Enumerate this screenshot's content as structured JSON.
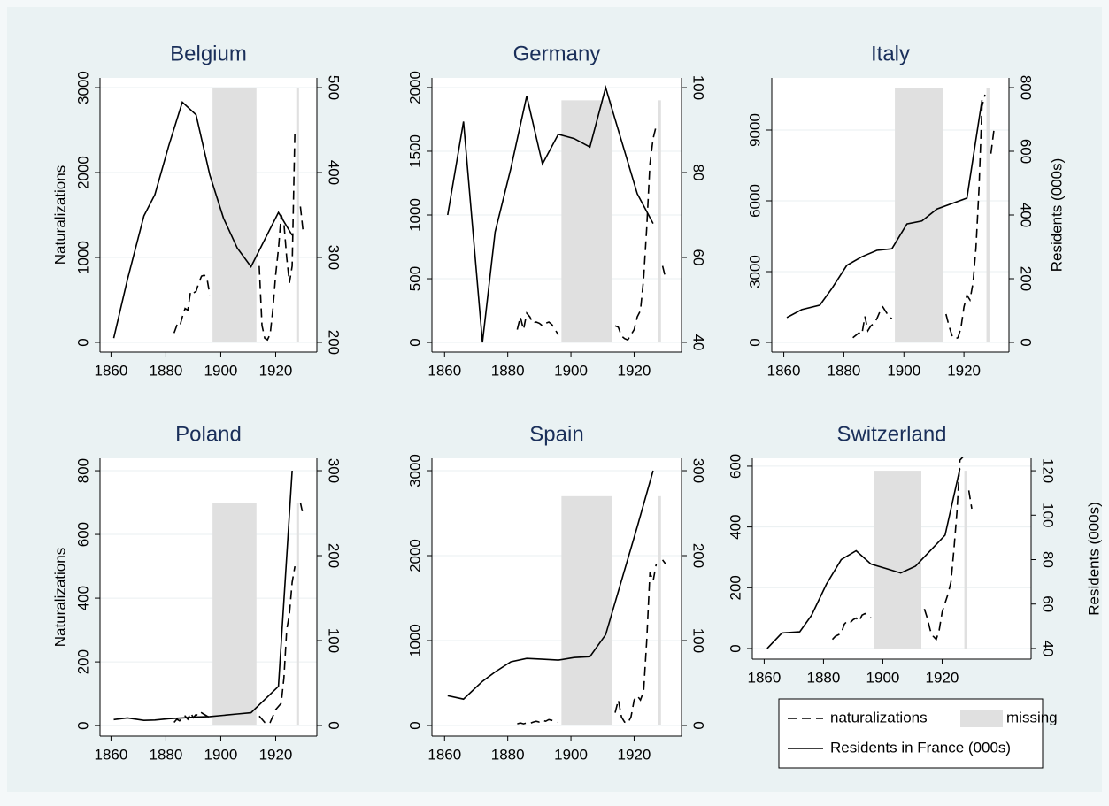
{
  "chart_data": [
    {
      "type": "line",
      "title": "Belgium",
      "ylabel": "Naturalizations",
      "grid": true,
      "xlim": [
        1856,
        1935
      ],
      "xticks": [
        1860,
        1880,
        1900,
        1920
      ],
      "ylim": [
        -115,
        3115
      ],
      "yticks": [
        0,
        1000,
        2000,
        3000
      ],
      "y2lim": [
        188.5,
        511.5
      ],
      "y2ticks": [
        200,
        300,
        400,
        500
      ],
      "missing": {
        "name": "missing",
        "color": "#e0e0e0",
        "ranges": [
          [
            1897,
            1913
          ],
          [
            1927.5,
            1928.5
          ]
        ],
        "height": 3000
      },
      "series": [
        {
          "name": "naturalizations",
          "color": "#000000",
          "dash": "dashed",
          "x": [
            1883,
            1884,
            1885,
            1886,
            1887,
            1888,
            1889,
            1890,
            1891,
            1892,
            1893,
            1894,
            1895,
            1896,
            1897,
            1914,
            1915,
            1916,
            1917,
            1918,
            1919,
            1920,
            1921,
            1922,
            1923,
            1924,
            1925,
            1926,
            1927,
            1928,
            1929,
            1930
          ],
          "values": [
            110,
            200,
            180,
            300,
            400,
            380,
            600,
            580,
            600,
            700,
            780,
            790,
            750,
            560,
            null,
            900,
            200,
            50,
            30,
            100,
            400,
            800,
            1100,
            1500,
            1400,
            1000,
            700,
            900,
            2500,
            null,
            1600,
            1300
          ]
        },
        {
          "name": "Residents in France (000s)",
          "color": "#000000",
          "dash": "solid",
          "axis": "y2",
          "x": [
            1861,
            1866,
            1872,
            1876,
            1881,
            1886,
            1891,
            1896,
            1901,
            1906,
            1911,
            1921,
            1926
          ],
          "values": [
            205,
            274,
            349,
            374,
            431,
            483,
            468,
            397,
            346,
            311,
            289,
            353,
            326
          ]
        }
      ]
    },
    {
      "type": "line",
      "title": "Germany",
      "grid": true,
      "xlim": [
        1856,
        1935
      ],
      "xticks": [
        1860,
        1880,
        1900,
        1920
      ],
      "ylim": [
        -76,
        2076
      ],
      "yticks": [
        0,
        500,
        1000,
        1500,
        2000
      ],
      "y2lim": [
        37.7,
        102.3
      ],
      "y2ticks": [
        40,
        60,
        80,
        100
      ],
      "missing": {
        "name": "missing",
        "color": "#e0e0e0",
        "ranges": [
          [
            1897,
            1913
          ],
          [
            1927.5,
            1928.5
          ]
        ],
        "height": 1900
      },
      "series": [
        {
          "name": "naturalizations",
          "color": "#000000",
          "dash": "dashed",
          "x": [
            1883,
            1884,
            1885,
            1886,
            1887,
            1888,
            1889,
            1890,
            1891,
            1892,
            1893,
            1894,
            1895,
            1896,
            1897,
            1914,
            1915,
            1916,
            1917,
            1918,
            1919,
            1920,
            1921,
            1922,
            1923,
            1924,
            1925,
            1926,
            1927,
            1928,
            1929,
            1930
          ],
          "values": [
            100,
            200,
            100,
            230,
            200,
            150,
            160,
            150,
            130,
            150,
            160,
            140,
            100,
            60,
            null,
            130,
            120,
            50,
            30,
            20,
            60,
            100,
            200,
            250,
            500,
            900,
            1400,
            1600,
            1700,
            null,
            600,
            500
          ]
        },
        {
          "name": "Residents in France (000s)",
          "color": "#000000",
          "dash": "solid",
          "axis": "y2",
          "x": [
            1861,
            1866,
            1872,
            1876,
            1881,
            1886,
            1891,
            1896,
            1901,
            1906,
            1911,
            1921,
            1926
          ],
          "values": [
            70,
            92,
            40,
            66,
            81,
            98,
            82,
            89,
            88,
            86,
            100,
            75,
            68
          ]
        }
      ]
    },
    {
      "type": "line",
      "title": "Italy",
      "y2label": "Residents (000s)",
      "grid": true,
      "xlim": [
        1856,
        1935
      ],
      "xticks": [
        1860,
        1880,
        1900,
        1920
      ],
      "ylim": [
        -412,
        11212
      ],
      "yticks": [
        0,
        3000,
        6000,
        9000
      ],
      "y2lim": [
        -30.6,
        830.6
      ],
      "y2ticks": [
        0,
        200,
        400,
        600,
        800
      ],
      "missing": {
        "name": "missing",
        "color": "#e0e0e0",
        "ranges": [
          [
            1897,
            1913
          ],
          [
            1927.5,
            1928.5
          ]
        ],
        "height": 10800
      },
      "series": [
        {
          "name": "naturalizations",
          "color": "#000000",
          "dash": "dashed",
          "x": [
            1883,
            1884,
            1885,
            1886,
            1887,
            1888,
            1889,
            1890,
            1891,
            1892,
            1893,
            1894,
            1895,
            1896,
            1897,
            1914,
            1915,
            1916,
            1917,
            1918,
            1919,
            1920,
            1921,
            1922,
            1923,
            1924,
            1925,
            1926,
            1927,
            1928,
            1929,
            1930
          ],
          "values": [
            200,
            300,
            400,
            350,
            1100,
            500,
            700,
            800,
            1000,
            1300,
            1500,
            1300,
            1100,
            1000,
            null,
            1200,
            700,
            300,
            150,
            200,
            600,
            1500,
            2000,
            1800,
            2500,
            4000,
            6500,
            10000,
            10500,
            null,
            8000,
            9000
          ]
        },
        {
          "name": "Residents in France (000s)",
          "color": "#000000",
          "dash": "solid",
          "axis": "y2",
          "x": [
            1861,
            1866,
            1872,
            1876,
            1881,
            1886,
            1891,
            1896,
            1901,
            1906,
            1911,
            1921,
            1926
          ],
          "values": [
            78,
            103,
            117,
            169,
            242,
            269,
            289,
            294,
            372,
            381,
            419,
            453,
            761
          ]
        }
      ]
    },
    {
      "type": "line",
      "title": "Poland",
      "ylabel": "Naturalizations",
      "grid": true,
      "xlim": [
        1856,
        1935
      ],
      "xticks": [
        1860,
        1880,
        1900,
        1920
      ],
      "ylim": [
        -33,
        839
      ],
      "yticks": [
        0,
        200,
        400,
        600,
        800
      ],
      "y2lim": [
        -12.5,
        314.6
      ],
      "y2ticks": [
        0,
        100,
        200,
        300
      ],
      "missing": {
        "name": "missing",
        "color": "#e0e0e0",
        "ranges": [
          [
            1897,
            1913
          ],
          [
            1927.5,
            1928.5
          ]
        ],
        "height": 700
      },
      "series": [
        {
          "name": "naturalizations",
          "color": "#000000",
          "dash": "dashed",
          "x": [
            1883,
            1884,
            1885,
            1886,
            1887,
            1888,
            1889,
            1890,
            1891,
            1892,
            1893,
            1894,
            1895,
            1896,
            1897,
            1914,
            1915,
            1916,
            1917,
            1918,
            1919,
            1920,
            1921,
            1922,
            1923,
            1924,
            1925,
            1926,
            1927,
            1928,
            1929,
            1930
          ],
          "values": [
            10,
            20,
            15,
            25,
            30,
            20,
            40,
            25,
            35,
            30,
            40,
            35,
            30,
            25,
            null,
            30,
            20,
            10,
            5,
            10,
            30,
            50,
            60,
            70,
            150,
            300,
            350,
            450,
            500,
            null,
            700,
            660
          ]
        },
        {
          "name": "Residents in France (000s)",
          "color": "#000000",
          "dash": "solid",
          "axis": "y2",
          "x": [
            1861,
            1866,
            1872,
            1876,
            1881,
            1886,
            1891,
            1896,
            1901,
            1906,
            1911,
            1921,
            1926
          ],
          "values": [
            7,
            9,
            6,
            6.5,
            8,
            9,
            10,
            10.5,
            12,
            13.5,
            15,
            46,
            300
          ]
        }
      ]
    },
    {
      "type": "line",
      "title": "Spain",
      "grid": true,
      "xlim": [
        1856,
        1935
      ],
      "xticks": [
        1860,
        1880,
        1900,
        1920
      ],
      "ylim": [
        -125,
        3146
      ],
      "yticks": [
        0,
        1000,
        2000,
        3000
      ],
      "y2lim": [
        -12.5,
        314.6
      ],
      "y2ticks": [
        0,
        100,
        200,
        300
      ],
      "missing": {
        "name": "missing",
        "color": "#e0e0e0",
        "ranges": [
          [
            1897,
            1913
          ],
          [
            1927.5,
            1928.5
          ]
        ],
        "height": 2700
      },
      "series": [
        {
          "name": "naturalizations",
          "color": "#000000",
          "dash": "dashed",
          "x": [
            1883,
            1884,
            1885,
            1886,
            1887,
            1888,
            1889,
            1890,
            1891,
            1892,
            1893,
            1894,
            1895,
            1896,
            1897,
            1914,
            1915,
            1916,
            1917,
            1918,
            1919,
            1920,
            1921,
            1922,
            1923,
            1924,
            1925,
            1926,
            1927,
            1928,
            1929,
            1930
          ],
          "values": [
            20,
            30,
            20,
            30,
            25,
            40,
            50,
            40,
            60,
            50,
            70,
            60,
            50,
            40,
            null,
            150,
            300,
            100,
            40,
            30,
            100,
            300,
            350,
            300,
            400,
            1000,
            1800,
            1700,
            1900,
            null,
            1950,
            1900
          ]
        },
        {
          "name": "Residents in France (000s)",
          "color": "#000000",
          "dash": "solid",
          "axis": "y2",
          "x": [
            1861,
            1866,
            1872,
            1876,
            1881,
            1886,
            1891,
            1896,
            1901,
            1906,
            1911,
            1921,
            1926
          ],
          "values": [
            35,
            31,
            52,
            63,
            75,
            79,
            78,
            77,
            80,
            81,
            107,
            234,
            300
          ]
        }
      ]
    },
    {
      "type": "line",
      "title": "Switzerland",
      "y2label": "Residents (000s)",
      "grid": true,
      "legend": true,
      "xlim": [
        1856,
        1950
      ],
      "xticks": [
        1860,
        1880,
        1900,
        1920
      ],
      "ylim": [
        -35,
        626
      ],
      "yticks": [
        0,
        200,
        400,
        600
      ],
      "y2lim": [
        35.2,
        125.6
      ],
      "y2ticks": [
        40,
        60,
        80,
        100,
        120
      ],
      "missing": {
        "name": "missing",
        "color": "#e0e0e0",
        "ranges": [
          [
            1897,
            1913
          ],
          [
            1927.5,
            1928.5
          ]
        ],
        "height": 585
      },
      "series": [
        {
          "name": "naturalizations",
          "color": "#000000",
          "dash": "dashed",
          "x": [
            1883,
            1884,
            1885,
            1886,
            1887,
            1888,
            1889,
            1890,
            1891,
            1892,
            1893,
            1894,
            1895,
            1896,
            1897,
            1914,
            1915,
            1916,
            1917,
            1918,
            1919,
            1920,
            1921,
            1922,
            1923,
            1924,
            1925,
            1926,
            1927,
            1928,
            1929,
            1930
          ],
          "values": [
            30,
            40,
            45,
            50,
            80,
            90,
            85,
            95,
            100,
            90,
            110,
            115,
            110,
            100,
            null,
            130,
            100,
            60,
            40,
            30,
            60,
            120,
            150,
            180,
            220,
            330,
            450,
            620,
            630,
            null,
            520,
            460
          ]
        },
        {
          "name": "Residents in France (000s)",
          "color": "#000000",
          "dash": "solid",
          "axis": "y2",
          "x": [
            1861,
            1866,
            1872,
            1876,
            1881,
            1886,
            1891,
            1896,
            1901,
            1906,
            1911,
            1921,
            1926
          ],
          "values": [
            40,
            47,
            47.5,
            55,
            69,
            80,
            84,
            78,
            76,
            74,
            77,
            91,
            121
          ]
        }
      ]
    }
  ]
}
